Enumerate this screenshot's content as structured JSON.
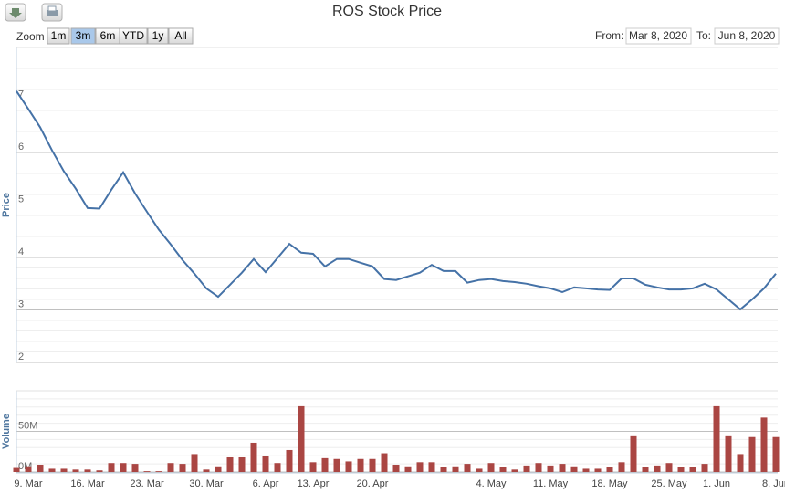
{
  "chart_data": {
    "type": "stock",
    "title": "ROS Stock Price",
    "range_selector": {
      "label": "Zoom",
      "buttons": [
        "1m",
        "3m",
        "6m",
        "YTD",
        "1y",
        "All"
      ],
      "selected": 1
    },
    "date_range": {
      "from_label": "From:",
      "from": "Mar 8, 2020",
      "to_label": "To:",
      "to": "Jun 8, 2020"
    },
    "categories": [
      null,
      "9. Mar",
      null,
      null,
      null,
      null,
      "16. Mar",
      null,
      null,
      null,
      null,
      "23. Mar",
      null,
      null,
      null,
      null,
      "30. Mar",
      null,
      null,
      null,
      null,
      "6. Apr",
      null,
      null,
      null,
      "13. Apr",
      null,
      null,
      null,
      null,
      "20. Apr",
      null,
      null,
      null,
      null,
      null,
      null,
      null,
      null,
      null,
      "4. May",
      null,
      null,
      null,
      null,
      "11. May",
      null,
      null,
      null,
      null,
      "18. May",
      null,
      null,
      null,
      null,
      "25. May",
      null,
      null,
      null,
      "1. Jun",
      null,
      null,
      null,
      null,
      "8. Jun"
    ],
    "panes": [
      {
        "type": "line",
        "ylabel": "Price",
        "color": "#4572a7",
        "ylim": [
          2,
          8
        ],
        "yticks": [
          2,
          3,
          4,
          5,
          6,
          7
        ],
        "grid": true,
        "values": [
          7.17,
          6.83,
          6.48,
          6.04,
          5.64,
          5.31,
          4.94,
          4.93,
          5.29,
          5.62,
          5.22,
          4.87,
          4.53,
          4.25,
          3.95,
          3.69,
          3.41,
          3.25,
          3.48,
          3.71,
          3.97,
          3.72,
          3.99,
          4.26,
          4.09,
          4.07,
          3.83,
          3.97,
          3.97,
          3.9,
          3.83,
          3.59,
          3.57,
          3.64,
          3.71,
          3.86,
          3.74,
          3.74,
          3.52,
          3.57,
          3.59,
          3.55,
          3.53,
          3.5,
          3.45,
          3.41,
          3.34,
          3.43,
          3.41,
          3.39,
          3.38,
          3.6,
          3.6,
          3.48,
          3.43,
          3.39,
          3.39,
          3.41,
          3.5,
          3.39,
          3.2,
          3.01,
          3.2,
          3.41,
          3.69
        ]
      },
      {
        "type": "bar",
        "ylabel": "Volume",
        "color": "#aa4643",
        "ylim": [
          0,
          100000000
        ],
        "yticks": [
          {
            "value": 0,
            "label": "0M"
          },
          {
            "value": 50000000,
            "label": "50M"
          }
        ],
        "grid": true,
        "values": [
          5000000,
          7000000,
          9000000,
          4000000,
          4000000,
          3000000,
          3000000,
          2000000,
          11000000,
          11000000,
          10000000,
          1000000,
          1000000,
          11000000,
          10000000,
          22000000,
          3000000,
          7000000,
          18000000,
          18000000,
          36000000,
          20000000,
          11000000,
          27000000,
          81000000,
          12000000,
          17000000,
          16000000,
          13000000,
          16000000,
          16000000,
          23000000,
          9000000,
          7000000,
          12000000,
          12000000,
          6000000,
          7000000,
          10000000,
          4000000,
          11000000,
          6000000,
          3000000,
          8000000,
          11000000,
          8000000,
          10000000,
          7000000,
          4000000,
          4000000,
          6000000,
          12000000,
          44000000,
          6000000,
          8000000,
          11000000,
          6000000,
          6000000,
          10000000,
          81000000,
          44000000,
          22000000,
          43000000,
          67000000,
          43000000
        ]
      }
    ]
  }
}
